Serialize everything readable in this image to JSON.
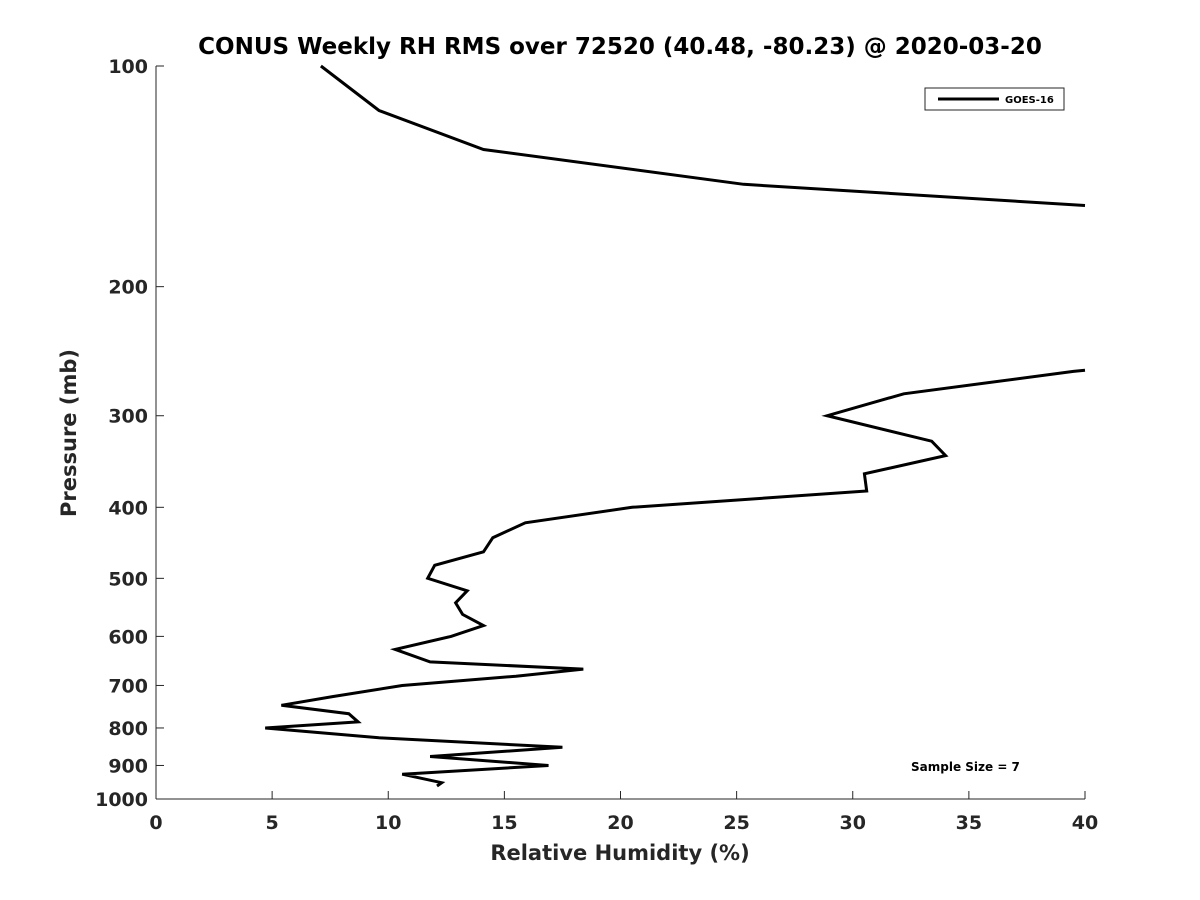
{
  "chart_data": {
    "type": "line",
    "title": "CONUS Weekly RH RMS over 72520 (40.48, -80.23) @ 2020-03-20",
    "xlabel": "Relative Humidity (%)",
    "ylabel": "Pressure (mb)",
    "xlim": [
      0,
      40
    ],
    "ylim": [
      100,
      1000
    ],
    "yscale": "log",
    "y_reversed": true,
    "grid": false,
    "legend_position": "top-right",
    "line_color": "#000000",
    "x_ticks": [
      0,
      5,
      10,
      15,
      20,
      25,
      30,
      35,
      40
    ],
    "x_tick_labels": [
      "0",
      "5",
      "10",
      "15",
      "20",
      "25",
      "30",
      "35",
      "40"
    ],
    "y_ticks": [
      100,
      200,
      300,
      400,
      500,
      600,
      700,
      800,
      900,
      1000
    ],
    "y_tick_labels": [
      "100",
      "200",
      "300",
      "400",
      "500",
      "600",
      "700",
      "800",
      "900",
      "1000"
    ],
    "annotation": "Sample Size = 7",
    "series": [
      {
        "name": "GOES-16",
        "segments": [
          {
            "x": [
              7.1,
              9.6,
              14.1,
              25.3,
              40.0
            ],
            "y": [
              100,
              115,
              130,
              145,
              155
            ]
          },
          {
            "x": [
              40.0,
              39.5,
              32.2,
              28.9,
              33.4,
              34.0,
              30.5,
              30.6,
              20.5,
              15.9,
              14.5,
              14.1,
              12.0,
              11.7,
              13.4,
              12.9,
              13.2,
              14.1,
              12.7,
              10.3,
              11.8,
              18.4,
              15.5,
              10.6,
              7.6,
              5.4,
              8.3,
              8.7,
              4.7,
              9.6,
              17.5,
              11.8,
              16.9,
              10.6,
              12.3,
              12.1
            ],
            "y": [
              260,
              261,
              280,
              300,
              325,
              340,
              360,
              380,
              400,
              420,
              440,
              460,
              480,
              500,
              520,
              540,
              560,
              580,
              600,
              625,
              650,
              665,
              680,
              700,
              725,
              745,
              765,
              785,
              800,
              825,
              850,
              875,
              900,
              925,
              950,
              960
            ]
          }
        ]
      }
    ]
  }
}
